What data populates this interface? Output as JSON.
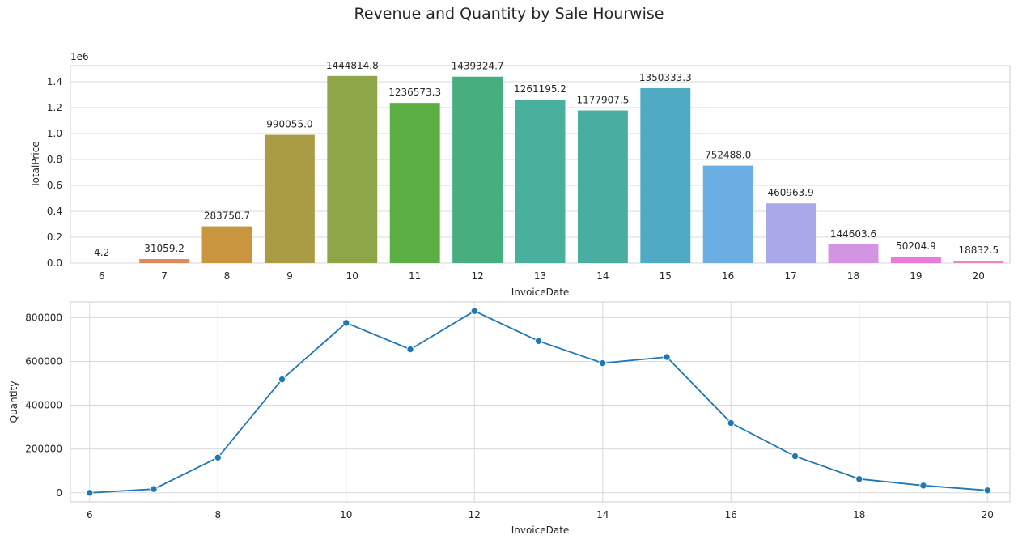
{
  "figure": {
    "title": "Revenue and Quantity by Sale Hourwise"
  },
  "chart_data": [
    {
      "type": "bar",
      "xlabel": "InvoiceDate",
      "ylabel": "TotalPrice",
      "y_offset_label": "1e6",
      "categories": [
        "6",
        "7",
        "8",
        "9",
        "10",
        "11",
        "12",
        "13",
        "14",
        "15",
        "16",
        "17",
        "18",
        "19",
        "20"
      ],
      "values": [
        4.2,
        31059.2,
        283750.7,
        990055.0,
        1444814.8,
        1236573.3,
        1439324.7,
        1261195.2,
        1177907.5,
        1350333.3,
        752488.0,
        460963.9,
        144603.6,
        50204.9,
        18832.5
      ],
      "data_labels": [
        "4.2",
        "31059.2",
        "283750.7",
        "990055.0",
        "1444814.8",
        "1236573.3",
        "1439324.7",
        "1261195.2",
        "1177907.5",
        "1350333.3",
        "752488.0",
        "460963.9",
        "144603.6",
        "50204.9",
        "18832.5"
      ],
      "colors": [
        "#e2887d",
        "#df8a5c",
        "#c9963f",
        "#a99c44",
        "#8ea548",
        "#5bae44",
        "#47ae80",
        "#48b09c",
        "#49ad9f",
        "#4fabc3",
        "#6aaee3",
        "#a9a8e9",
        "#d494e4",
        "#e879dd",
        "#ec85c4"
      ],
      "y_ticks": [
        0.0,
        0.2,
        0.4,
        0.6,
        0.8,
        1.0,
        1.2,
        1.4
      ],
      "y_tick_labels": [
        "0.0",
        "0.2",
        "0.4",
        "0.6",
        "0.8",
        "1.0",
        "1.2",
        "1.4"
      ],
      "ylim": [
        0,
        1525000
      ],
      "grid": true
    },
    {
      "type": "line",
      "xlabel": "InvoiceDate",
      "ylabel": "Quantity",
      "x": [
        6,
        7,
        8,
        9,
        10,
        11,
        12,
        13,
        14,
        15,
        16,
        17,
        18,
        19,
        20
      ],
      "values": [
        0,
        17000,
        161000,
        518000,
        776000,
        655000,
        830000,
        693000,
        592000,
        620000,
        319000,
        167000,
        63000,
        33000,
        11000
      ],
      "color": "#1f77b4",
      "x_ticks": [
        6,
        8,
        10,
        12,
        14,
        16,
        18,
        20
      ],
      "x_tick_labels": [
        "6",
        "8",
        "10",
        "12",
        "14",
        "16",
        "18",
        "20"
      ],
      "y_ticks": [
        0,
        200000,
        400000,
        600000,
        800000
      ],
      "y_tick_labels": [
        "0",
        "200000",
        "400000",
        "600000",
        "800000"
      ],
      "xlim": [
        5.7,
        20.35
      ],
      "ylim": [
        -41500,
        871500
      ],
      "grid": true
    }
  ]
}
